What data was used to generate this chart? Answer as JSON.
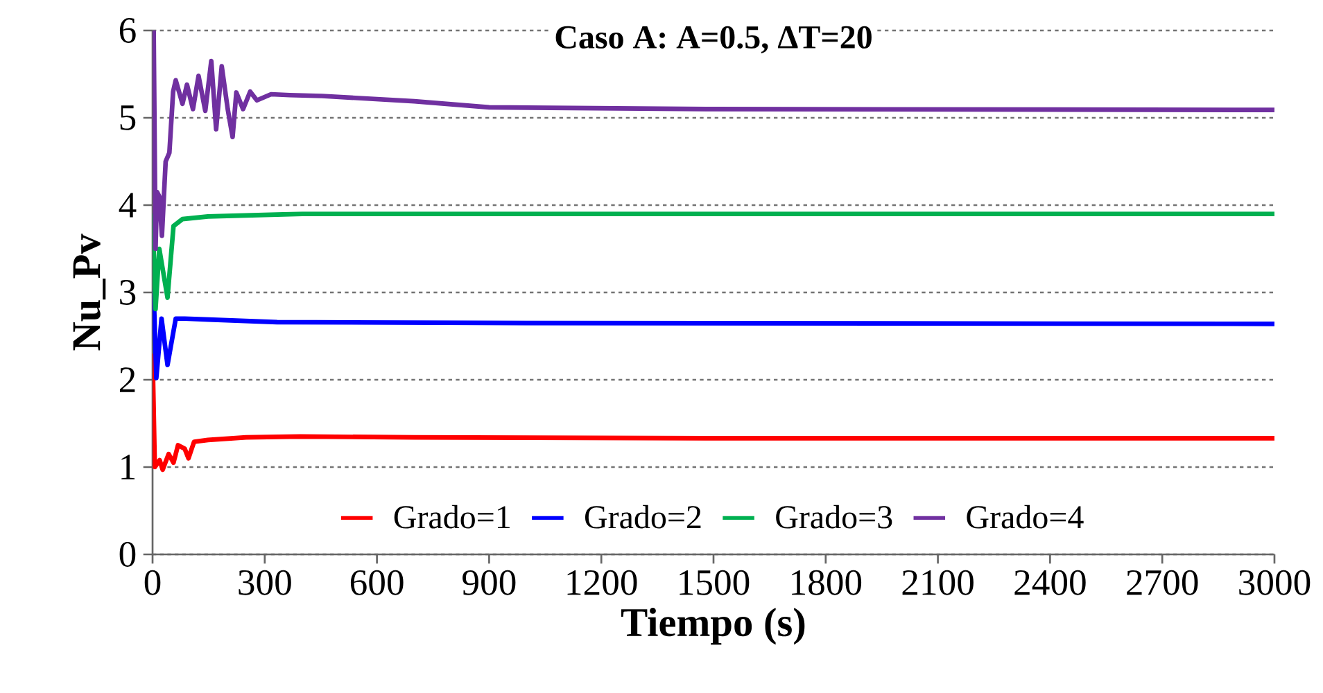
{
  "chart_data": {
    "type": "line",
    "title": "**Caso A: A=0.5, ΔT=20**",
    "xlabel": "Tiempo (s)",
    "ylabel": "Nu_Pv",
    "xlim": [
      0,
      3000
    ],
    "xticks": [
      0,
      300,
      600,
      900,
      1200,
      1500,
      1800,
      2100,
      2400,
      2700,
      3000
    ],
    "ylim": [
      0,
      6
    ],
    "yticks": [
      0,
      1,
      2,
      3,
      4,
      5,
      6
    ],
    "grid": "y",
    "legend": "bottom",
    "line_style": "solid",
    "marker": "none",
    "series": [
      {
        "name": "Grado=1",
        "color": "#ff0000",
        "x": [
          0,
          6,
          19,
          27,
          43,
          56,
          68,
          86,
          96,
          111,
          148,
          250,
          395,
          700,
          1500,
          3000
        ],
        "values": [
          2.3,
          1.0,
          1.08,
          0.97,
          1.15,
          1.05,
          1.25,
          1.21,
          1.1,
          1.29,
          1.31,
          1.34,
          1.35,
          1.34,
          1.33,
          1.33
        ]
      },
      {
        "name": "Grado=2",
        "color": "#0000ff",
        "x": [
          0,
          3,
          10,
          24,
          40,
          62,
          86,
          150,
          333,
          1000,
          3000
        ],
        "values": [
          3.9,
          3.0,
          2.02,
          2.7,
          2.17,
          2.7,
          2.7,
          2.69,
          2.66,
          2.65,
          2.64
        ]
      },
      {
        "name": "Grado=3",
        "color": "#00b050",
        "x": [
          0,
          3,
          8,
          18,
          40,
          56,
          80,
          148,
          400,
          1000,
          3000
        ],
        "values": [
          3.9,
          3.49,
          2.81,
          3.5,
          2.94,
          3.76,
          3.84,
          3.87,
          3.9,
          3.9,
          3.9
        ]
      },
      {
        "name": "Grado=4",
        "color": "#7030a0",
        "x": [
          0,
          3,
          8,
          12,
          18,
          25,
          35,
          45,
          55,
          62,
          80,
          92,
          108,
          123,
          141,
          157,
          170,
          185,
          201,
          214,
          224,
          242,
          261,
          279,
          317,
          367,
          453,
          700,
          900,
          1500,
          3000
        ],
        "values": [
          6.0,
          6.0,
          3.5,
          4.15,
          4.1,
          3.65,
          4.5,
          4.6,
          5.3,
          5.43,
          5.16,
          5.38,
          5.1,
          5.48,
          5.08,
          5.65,
          4.87,
          5.59,
          5.1,
          4.78,
          5.29,
          5.1,
          5.3,
          5.2,
          5.27,
          5.26,
          5.25,
          5.19,
          5.12,
          5.1,
          5.09
        ]
      }
    ]
  }
}
